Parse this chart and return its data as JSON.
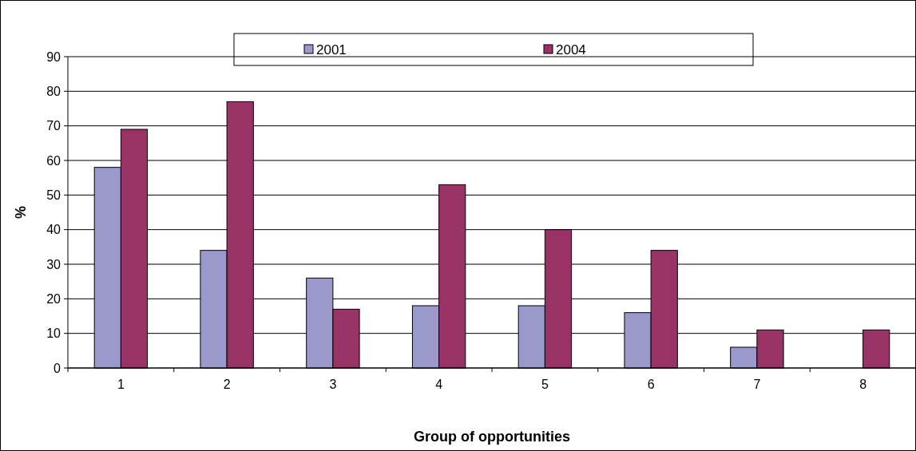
{
  "chart_data": {
    "type": "bar",
    "xlabel": "Group of opportunities",
    "ylabel": "%",
    "categories": [
      "1",
      "2",
      "3",
      "4",
      "5",
      "6",
      "7",
      "8"
    ],
    "series": [
      {
        "name": "2001",
        "color": "#9999cc",
        "values": [
          58,
          34,
          26,
          18,
          18,
          16,
          6,
          null
        ]
      },
      {
        "name": "2004",
        "color": "#993366",
        "values": [
          69,
          77,
          17,
          53,
          40,
          34,
          11,
          11
        ]
      }
    ],
    "ylim": [
      0,
      90
    ],
    "yticks": [
      0,
      10,
      20,
      30,
      40,
      50,
      60,
      70,
      80,
      90
    ],
    "grid": "y",
    "legend": "top"
  }
}
